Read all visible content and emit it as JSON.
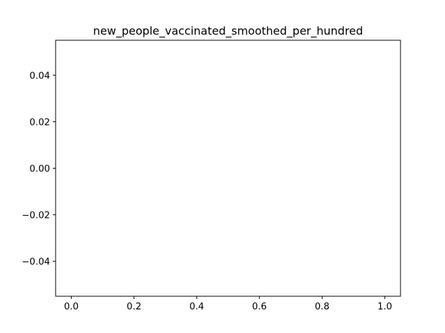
{
  "chart_data": {
    "type": "line",
    "title": "new_people_vaccinated_smoothed_per_hundred",
    "xlabel": "",
    "ylabel": "",
    "series": [],
    "xlim": [
      -0.05,
      1.05
    ],
    "ylim": [
      -0.055,
      0.055
    ],
    "x_ticks": [
      "0.0",
      "0.2",
      "0.4",
      "0.6",
      "0.8",
      "1.0"
    ],
    "x_tick_values": [
      0.0,
      0.2,
      0.4,
      0.6,
      0.8,
      1.0
    ],
    "y_ticks": [
      "0.04",
      "0.02",
      "0.00",
      "−0.02",
      "−0.04"
    ],
    "y_tick_values": [
      0.04,
      0.02,
      0.0,
      -0.02,
      -0.04
    ],
    "grid": false,
    "legend": "none"
  }
}
